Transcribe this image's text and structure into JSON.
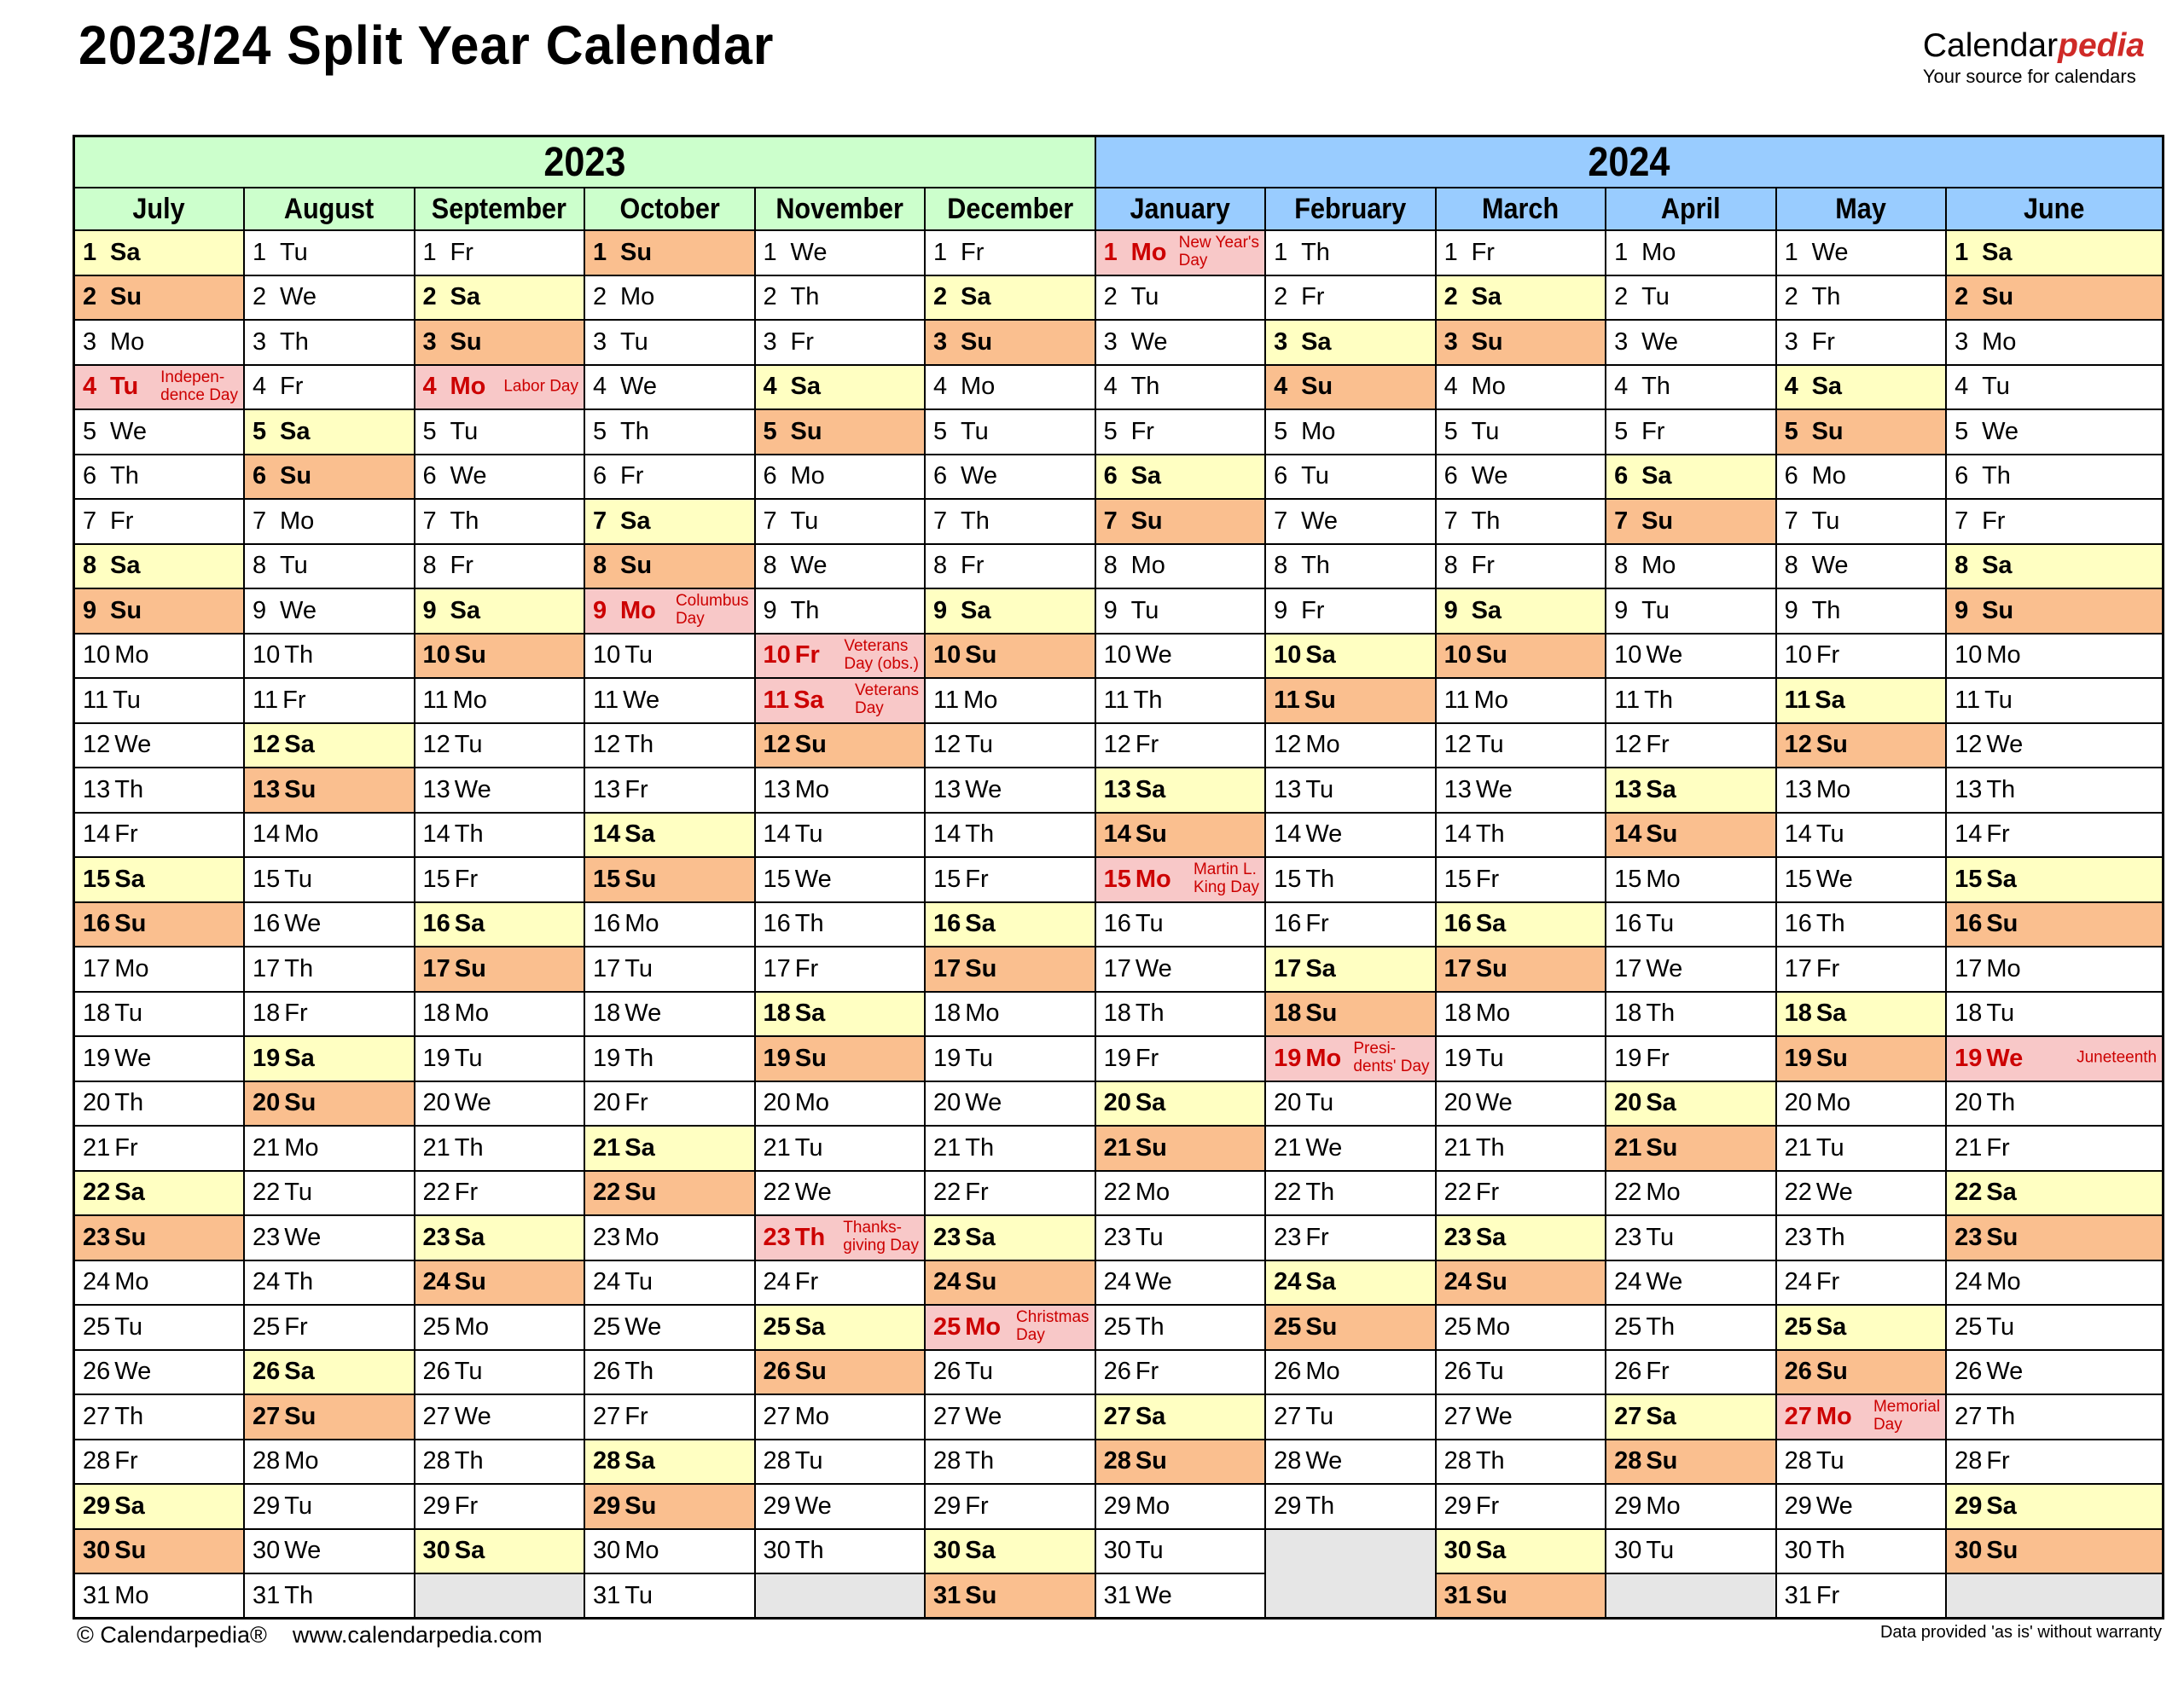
{
  "page": {
    "title": "2023/24 Split Year Calendar"
  },
  "logo": {
    "brand_prefix": "Calendar",
    "brand_suffix": "pedia",
    "tagline": "Your source for calendars"
  },
  "colors": {
    "saturday": "#FFFFC2",
    "sunday": "#FABF8F",
    "holiday_bg": "#F8C8C8",
    "holiday_text": "#CC0000",
    "year_2023_header": "#CCFFCC",
    "year_2024_header": "#99CCFF",
    "empty_cell": "#E6E6E6",
    "logo_red": "#CF2A27"
  },
  "years": [
    {
      "label": "2023",
      "header_color": "#CCFFCC",
      "months": [
        {
          "name": "July",
          "weekdays": [
            "Sa",
            "Su",
            "Mo",
            "Tu",
            "We",
            "Th",
            "Fr",
            "Sa",
            "Su",
            "Mo",
            "Tu",
            "We",
            "Th",
            "Fr",
            "Sa",
            "Su",
            "Mo",
            "Tu",
            "We",
            "Th",
            "Fr",
            "Sa",
            "Su",
            "Mo",
            "Tu",
            "We",
            "Th",
            "Fr",
            "Sa",
            "Su",
            "Mo"
          ],
          "holidays": {
            "4": "Indepen-\ndence Day"
          }
        },
        {
          "name": "August",
          "weekdays": [
            "Tu",
            "We",
            "Th",
            "Fr",
            "Sa",
            "Su",
            "Mo",
            "Tu",
            "We",
            "Th",
            "Fr",
            "Sa",
            "Su",
            "Mo",
            "Tu",
            "We",
            "Th",
            "Fr",
            "Sa",
            "Su",
            "Mo",
            "Tu",
            "We",
            "Th",
            "Fr",
            "Sa",
            "Su",
            "Mo",
            "Tu",
            "We",
            "Th"
          ],
          "holidays": {}
        },
        {
          "name": "September",
          "weekdays": [
            "Fr",
            "Sa",
            "Su",
            "Mo",
            "Tu",
            "We",
            "Th",
            "Fr",
            "Sa",
            "Su",
            "Mo",
            "Tu",
            "We",
            "Th",
            "Fr",
            "Sa",
            "Su",
            "Mo",
            "Tu",
            "We",
            "Th",
            "Fr",
            "Sa",
            "Su",
            "Mo",
            "Tu",
            "We",
            "Th",
            "Fr",
            "Sa"
          ],
          "holidays": {
            "4": "Labor Day"
          }
        },
        {
          "name": "October",
          "weekdays": [
            "Su",
            "Mo",
            "Tu",
            "We",
            "Th",
            "Fr",
            "Sa",
            "Su",
            "Mo",
            "Tu",
            "We",
            "Th",
            "Fr",
            "Sa",
            "Su",
            "Mo",
            "Tu",
            "We",
            "Th",
            "Fr",
            "Sa",
            "Su",
            "Mo",
            "Tu",
            "We",
            "Th",
            "Fr",
            "Sa",
            "Su",
            "Mo",
            "Tu"
          ],
          "holidays": {
            "9": "Columbus\nDay"
          }
        },
        {
          "name": "November",
          "weekdays": [
            "We",
            "Th",
            "Fr",
            "Sa",
            "Su",
            "Mo",
            "Tu",
            "We",
            "Th",
            "Fr",
            "Sa",
            "Su",
            "Mo",
            "Tu",
            "We",
            "Th",
            "Fr",
            "Sa",
            "Su",
            "Mo",
            "Tu",
            "We",
            "Th",
            "Fr",
            "Sa",
            "Su",
            "Mo",
            "Tu",
            "We",
            "Th"
          ],
          "holidays": {
            "10": "Veterans\nDay (obs.)",
            "11": "Veterans\nDay",
            "23": "Thanks-\ngiving Day"
          }
        },
        {
          "name": "December",
          "weekdays": [
            "Fr",
            "Sa",
            "Su",
            "Mo",
            "Tu",
            "We",
            "Th",
            "Fr",
            "Sa",
            "Su",
            "Mo",
            "Tu",
            "We",
            "Th",
            "Fr",
            "Sa",
            "Su",
            "Mo",
            "Tu",
            "We",
            "Th",
            "Fr",
            "Sa",
            "Su",
            "Mo",
            "Tu",
            "We",
            "Th",
            "Fr",
            "Sa",
            "Su"
          ],
          "holidays": {
            "25": "Christmas\nDay"
          }
        }
      ]
    },
    {
      "label": "2024",
      "header_color": "#99CCFF",
      "months": [
        {
          "name": "January",
          "weekdays": [
            "Mo",
            "Tu",
            "We",
            "Th",
            "Fr",
            "Sa",
            "Su",
            "Mo",
            "Tu",
            "We",
            "Th",
            "Fr",
            "Sa",
            "Su",
            "Mo",
            "Tu",
            "We",
            "Th",
            "Fr",
            "Sa",
            "Su",
            "Mo",
            "Tu",
            "We",
            "Th",
            "Fr",
            "Sa",
            "Su",
            "Mo",
            "Tu",
            "We"
          ],
          "holidays": {
            "1": "New Year's\nDay",
            "15": "Martin L.\nKing Day"
          }
        },
        {
          "name": "February",
          "weekdays": [
            "Th",
            "Fr",
            "Sa",
            "Su",
            "Mo",
            "Tu",
            "We",
            "Th",
            "Fr",
            "Sa",
            "Su",
            "Mo",
            "Tu",
            "We",
            "Th",
            "Fr",
            "Sa",
            "Su",
            "Mo",
            "Tu",
            "We",
            "Th",
            "Fr",
            "Sa",
            "Su",
            "Mo",
            "Tu",
            "We",
            "Th"
          ],
          "holidays": {
            "19": "Presi-\ndents' Day"
          }
        },
        {
          "name": "March",
          "weekdays": [
            "Fr",
            "Sa",
            "Su",
            "Mo",
            "Tu",
            "We",
            "Th",
            "Fr",
            "Sa",
            "Su",
            "Mo",
            "Tu",
            "We",
            "Th",
            "Fr",
            "Sa",
            "Su",
            "Mo",
            "Tu",
            "We",
            "Th",
            "Fr",
            "Sa",
            "Su",
            "Mo",
            "Tu",
            "We",
            "Th",
            "Fr",
            "Sa",
            "Su"
          ],
          "holidays": {}
        },
        {
          "name": "April",
          "weekdays": [
            "Mo",
            "Tu",
            "We",
            "Th",
            "Fr",
            "Sa",
            "Su",
            "Mo",
            "Tu",
            "We",
            "Th",
            "Fr",
            "Sa",
            "Su",
            "Mo",
            "Tu",
            "We",
            "Th",
            "Fr",
            "Sa",
            "Su",
            "Mo",
            "Tu",
            "We",
            "Th",
            "Fr",
            "Sa",
            "Su",
            "Mo",
            "Tu"
          ],
          "holidays": {}
        },
        {
          "name": "May",
          "weekdays": [
            "We",
            "Th",
            "Fr",
            "Sa",
            "Su",
            "Mo",
            "Tu",
            "We",
            "Th",
            "Fr",
            "Sa",
            "Su",
            "Mo",
            "Tu",
            "We",
            "Th",
            "Fr",
            "Sa",
            "Su",
            "Mo",
            "Tu",
            "We",
            "Th",
            "Fr",
            "Sa",
            "Su",
            "Mo",
            "Tu",
            "We",
            "Th",
            "Fr"
          ],
          "holidays": {
            "27": "Memorial\nDay"
          }
        },
        {
          "name": "June",
          "weekdays": [
            "Sa",
            "Su",
            "Mo",
            "Tu",
            "We",
            "Th",
            "Fr",
            "Sa",
            "Su",
            "Mo",
            "Tu",
            "We",
            "Th",
            "Fr",
            "Sa",
            "Su",
            "Mo",
            "Tu",
            "We",
            "Th",
            "Fr",
            "Sa",
            "Su",
            "Mo",
            "Tu",
            "We",
            "Th",
            "Fr",
            "Sa",
            "Su"
          ],
          "holidays": {
            "19": "Juneteenth"
          }
        }
      ]
    }
  ],
  "max_rows": 31,
  "footer": {
    "copyright": "© Calendarpedia®",
    "website": "www.calendarpedia.com",
    "disclaimer": "Data provided 'as is' without warranty"
  }
}
